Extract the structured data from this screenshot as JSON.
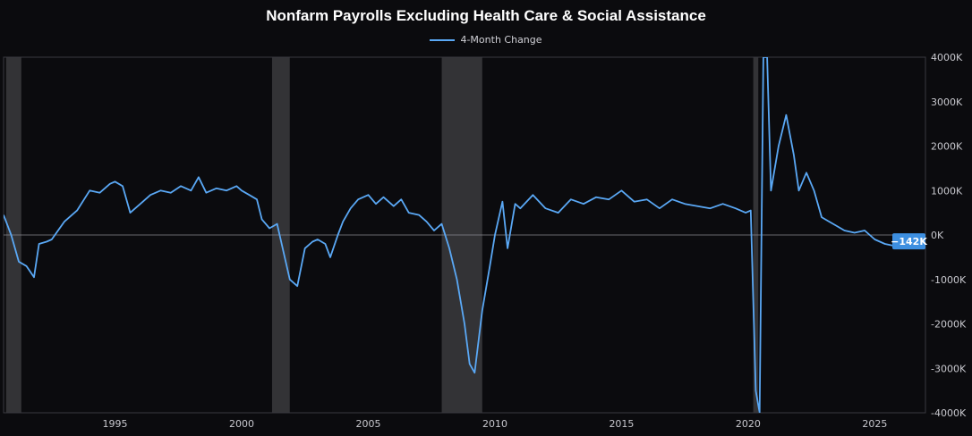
{
  "chart_data": {
    "type": "line",
    "title": "Nonfarm Payrolls Excluding Health Care & Social Assistance",
    "legend_position": "top-center",
    "grid": false,
    "xlim": [
      1990.6,
      2027.0
    ],
    "ylim": [
      -4000,
      4000
    ],
    "x_ticks": [
      1995,
      2000,
      2005,
      2010,
      2015,
      2020,
      2025
    ],
    "y_ticks": [
      4000,
      3000,
      2000,
      1000,
      0,
      -1000,
      -2000,
      -3000,
      -4000
    ],
    "y_tick_labels": [
      "4000K",
      "3000K",
      "2000K",
      "1000K",
      "0K",
      "-1000K",
      "-2000K",
      "-3000K",
      "-4000K"
    ],
    "recessions": [
      [
        1990.7,
        1991.3
      ],
      [
        2001.2,
        2001.9
      ],
      [
        2007.9,
        2009.5
      ],
      [
        2020.2,
        2020.4
      ]
    ],
    "last_value_label": "−142K",
    "line_color": "#5aa8f5",
    "series": [
      {
        "name": "4-Month Change",
        "x": [
          1990.6,
          1990.9,
          1991.2,
          1991.5,
          1991.8,
          1992.0,
          1992.3,
          1992.5,
          1993.0,
          1993.5,
          1994.0,
          1994.4,
          1994.8,
          1995.0,
          1995.3,
          1995.6,
          1996.0,
          1996.4,
          1996.8,
          1997.2,
          1997.6,
          1998.0,
          1998.3,
          1998.6,
          1999.0,
          1999.4,
          1999.8,
          2000.0,
          2000.3,
          2000.6,
          2000.8,
          2001.1,
          2001.4,
          2001.7,
          2001.9,
          2002.2,
          2002.5,
          2002.8,
          2003.0,
          2003.3,
          2003.5,
          2003.8,
          2004.0,
          2004.3,
          2004.6,
          2005.0,
          2005.3,
          2005.6,
          2006.0,
          2006.3,
          2006.6,
          2007.0,
          2007.3,
          2007.6,
          2007.9,
          2008.2,
          2008.5,
          2008.8,
          2009.0,
          2009.2,
          2009.5,
          2009.8,
          2010.0,
          2010.3,
          2010.5,
          2010.8,
          2011.0,
          2011.5,
          2012.0,
          2012.5,
          2013.0,
          2013.5,
          2014.0,
          2014.5,
          2015.0,
          2015.5,
          2016.0,
          2016.5,
          2017.0,
          2017.5,
          2018.0,
          2018.5,
          2019.0,
          2019.5,
          2019.9,
          2020.1,
          2020.3,
          2020.45,
          2020.6,
          2020.75,
          2020.9,
          2021.2,
          2021.5,
          2021.8,
          2022.0,
          2022.3,
          2022.6,
          2022.9,
          2023.2,
          2023.5,
          2023.8,
          2024.2,
          2024.6,
          2025.0,
          2025.4,
          2025.8,
          2026.1
        ],
        "values": [
          450,
          0,
          -600,
          -700,
          -950,
          -200,
          -150,
          -100,
          300,
          550,
          1000,
          950,
          1150,
          1200,
          1100,
          500,
          700,
          900,
          1000,
          950,
          1100,
          1000,
          1300,
          950,
          1050,
          1000,
          1100,
          1000,
          900,
          800,
          350,
          150,
          250,
          -500,
          -1000,
          -1150,
          -300,
          -150,
          -100,
          -200,
          -500,
          0,
          300,
          600,
          800,
          900,
          700,
          850,
          650,
          800,
          500,
          450,
          300,
          100,
          250,
          -300,
          -1000,
          -2000,
          -2900,
          -3100,
          -1700,
          -700,
          0,
          750,
          -300,
          700,
          600,
          900,
          600,
          500,
          800,
          700,
          850,
          800,
          1000,
          750,
          800,
          600,
          800,
          700,
          650,
          600,
          700,
          600,
          500,
          550,
          -3500,
          -4000,
          4000,
          4000,
          1000,
          2000,
          2700,
          1800,
          1000,
          1400,
          1000,
          400,
          300,
          200,
          100,
          50,
          100,
          -100,
          -200,
          -250,
          -142
        ]
      }
    ]
  }
}
